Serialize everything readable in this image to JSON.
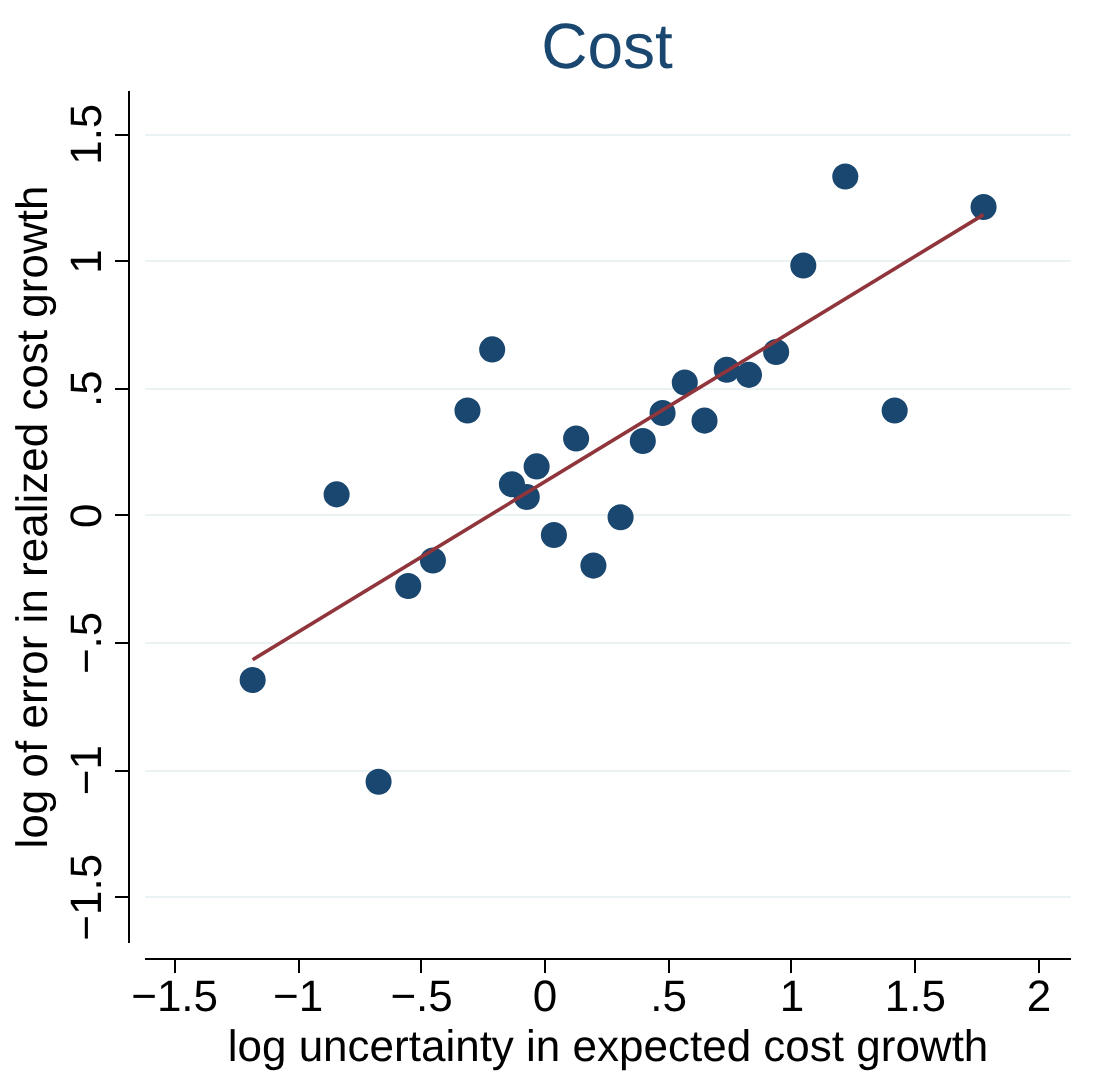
{
  "chart_data": {
    "type": "scatter",
    "title": "Cost",
    "xlabel": "log uncertainty in expected cost growth",
    "ylabel": "log of error in realized cost growth",
    "xlim": [
      -1.62,
      2.13
    ],
    "ylim": [
      -1.68,
      1.67
    ],
    "xticks": [
      {
        "value": -1.5,
        "label": "−1.5"
      },
      {
        "value": -1,
        "label": "−1"
      },
      {
        "value": -0.5,
        "label": "−.5"
      },
      {
        "value": 0,
        "label": "0"
      },
      {
        "value": 0.5,
        "label": ".5"
      },
      {
        "value": 1,
        "label": "1"
      },
      {
        "value": 1.5,
        "label": "1.5"
      },
      {
        "value": 2,
        "label": "2"
      }
    ],
    "yticks": [
      {
        "value": -1.5,
        "label": "−1.5"
      },
      {
        "value": -1,
        "label": "−1"
      },
      {
        "value": -0.5,
        "label": "−.5"
      },
      {
        "value": 0,
        "label": "0"
      },
      {
        "value": 0.5,
        "label": ".5"
      },
      {
        "value": 1,
        "label": "1"
      },
      {
        "value": 1.5,
        "label": "1.5"
      }
    ],
    "grid": "y",
    "series": [
      {
        "marker": "circle",
        "color": "#1a476f",
        "x": [
          -1.18,
          -0.84,
          -0.67,
          -0.55,
          -0.45,
          -0.31,
          -0.21,
          -0.13,
          -0.07,
          -0.03,
          0.04,
          0.13,
          0.2,
          0.31,
          0.4,
          0.48,
          0.57,
          0.65,
          0.74,
          0.83,
          0.94,
          1.05,
          1.22,
          1.42,
          1.78
        ],
        "values": [
          -0.65,
          0.08,
          -1.05,
          -0.28,
          -0.18,
          0.41,
          0.65,
          0.12,
          0.07,
          0.19,
          -0.08,
          0.3,
          -0.2,
          -0.01,
          0.29,
          0.4,
          0.52,
          0.37,
          0.57,
          0.55,
          0.64,
          0.98,
          1.33,
          0.41,
          1.21
        ]
      },
      {
        "type": "line",
        "marker": "none",
        "line_style": "solid",
        "color": "#90353b",
        "x": [
          -1.18,
          1.78
        ],
        "values": [
          -0.57,
          1.18
        ]
      }
    ]
  }
}
